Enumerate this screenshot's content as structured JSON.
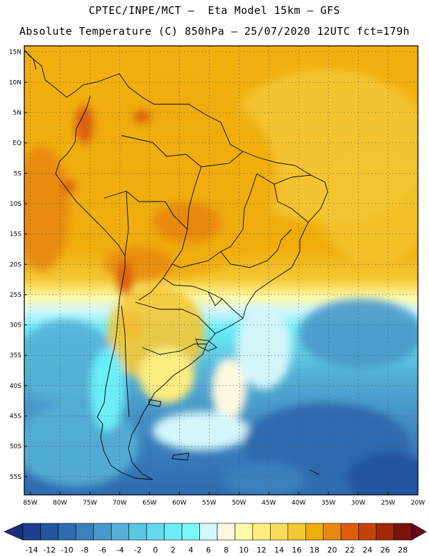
{
  "header": {
    "line1": "CPTEC/INPE/MCT –  Eta Model 15km – GFS",
    "line2": "Absolute Temperature (C) 850hPa – 25/07/2020 12UTC fct=179h"
  },
  "map": {
    "lat_labels": [
      "15N",
      "10N",
      "5N",
      "EQ",
      "5S",
      "10S",
      "15S",
      "20S",
      "25S",
      "30S",
      "35S",
      "40S",
      "45S",
      "50S",
      "55S"
    ],
    "lat_values": [
      15,
      10,
      5,
      0,
      -5,
      -10,
      -15,
      -20,
      -25,
      -30,
      -35,
      -40,
      -45,
      -50,
      -55
    ],
    "lon_labels": [
      "85W",
      "80W",
      "75W",
      "70W",
      "65W",
      "60W",
      "55W",
      "50W",
      "45W",
      "40W",
      "35W",
      "30W",
      "25W",
      "20W"
    ],
    "lon_values": [
      -85,
      -80,
      -75,
      -70,
      -65,
      -60,
      -55,
      -50,
      -45,
      -40,
      -35,
      -30,
      -25,
      -20
    ],
    "lon_range": [
      -86,
      -20
    ],
    "lat_range": [
      -58,
      16
    ],
    "grid": true
  },
  "colorbar": {
    "labels": [
      "-14",
      "-12",
      "-10",
      "-8",
      "-6",
      "-4",
      "-2",
      "0",
      "2",
      "4",
      "6",
      "8",
      "10",
      "12",
      "14",
      "16",
      "18",
      "20",
      "22",
      "24",
      "26",
      "28"
    ],
    "colors": [
      "#1c3f8f",
      "#24559f",
      "#2e6aae",
      "#3b80bd",
      "#4898c9",
      "#55b0d6",
      "#5cc6e3",
      "#62dbee",
      "#6aeef8",
      "#78f8fb",
      "#d3f6fb",
      "#fff8e0",
      "#fffaa8",
      "#fdec80",
      "#f9dc5c",
      "#f4c835",
      "#efad0a",
      "#e88710",
      "#dd5f0b",
      "#c4420a",
      "#a32a07",
      "#781507"
    ],
    "low_arrow_color": "#1a2e7a",
    "high_arrow_color": "#6a001f"
  }
}
